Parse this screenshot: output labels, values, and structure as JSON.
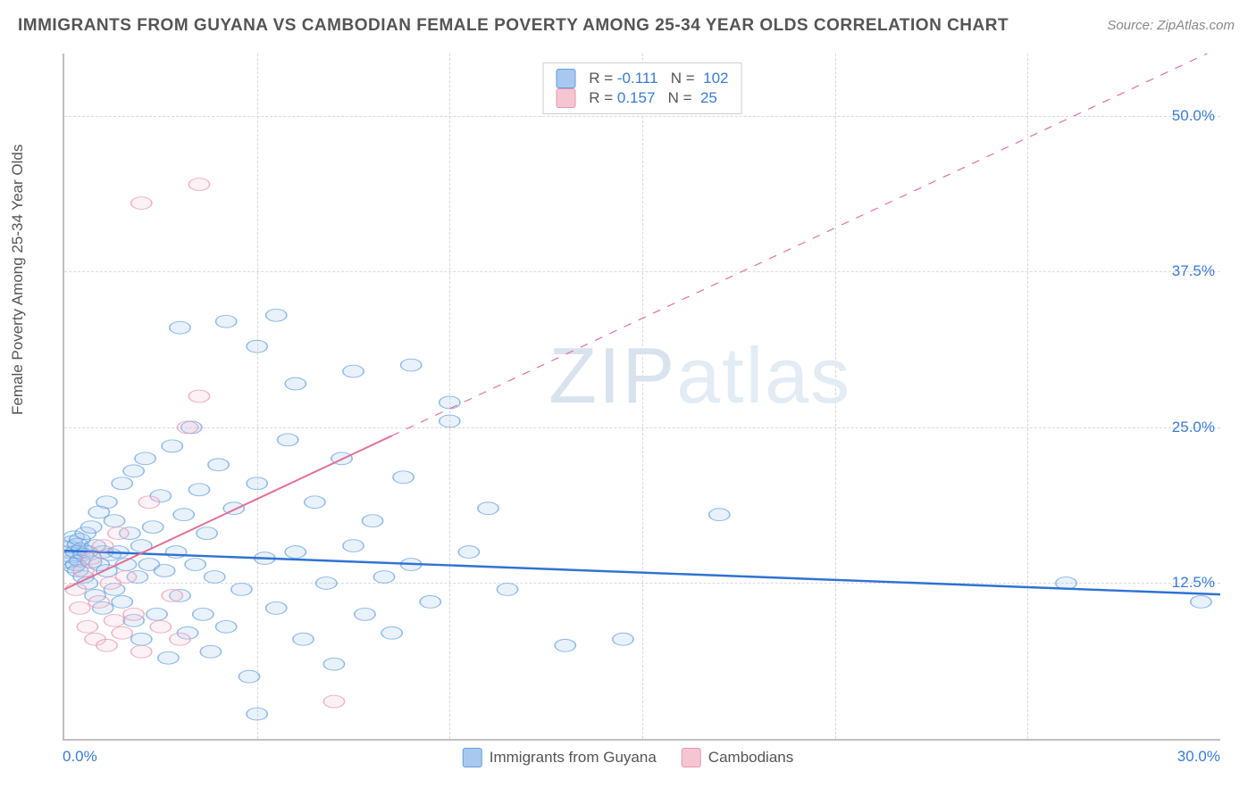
{
  "title": "IMMIGRANTS FROM GUYANA VS CAMBODIAN FEMALE POVERTY AMONG 25-34 YEAR OLDS CORRELATION CHART",
  "source_label": "Source:",
  "source_value": "ZipAtlas.com",
  "watermark_a": "ZIP",
  "watermark_b": "atlas",
  "chart": {
    "type": "scatter",
    "xlim": [
      0,
      30
    ],
    "ylim": [
      0,
      55
    ],
    "x_ticks": [
      0,
      30
    ],
    "x_tick_labels": [
      "0.0%",
      "30.0%"
    ],
    "x_minor_step": 5,
    "y_ticks": [
      12.5,
      25.0,
      37.5,
      50.0
    ],
    "y_tick_labels": [
      "12.5%",
      "25.0%",
      "37.5%",
      "50.0%"
    ],
    "y_axis_label": "Female Poverty Among 25-34 Year Olds",
    "background_color": "#ffffff",
    "grid_color": "#d9d9d9",
    "axis_color": "#bfbfbf",
    "tick_label_color": "#3a7bd5",
    "tick_fontsize": 17,
    "marker_radius": 9,
    "series": [
      {
        "id": "guyana",
        "label": "Immigrants from Guyana",
        "fill": "#a9c8ef",
        "stroke": "#5f9fe0",
        "trend": {
          "m": -0.117,
          "b": 15.1,
          "solid_until_x": 30,
          "width": 3.2,
          "color": "#2f72d4"
        },
        "R": "-0.111",
        "N": "102",
        "points": [
          [
            0.1,
            15.0
          ],
          [
            0.1,
            14.2
          ],
          [
            0.15,
            15.4
          ],
          [
            0.2,
            14.6
          ],
          [
            0.2,
            15.8
          ],
          [
            0.25,
            13.8
          ],
          [
            0.25,
            16.2
          ],
          [
            0.3,
            14.0
          ],
          [
            0.3,
            15.0
          ],
          [
            0.35,
            15.6
          ],
          [
            0.35,
            13.5
          ],
          [
            0.4,
            16.0
          ],
          [
            0.4,
            14.3
          ],
          [
            0.45,
            15.2
          ],
          [
            0.5,
            14.8
          ],
          [
            0.5,
            13.0
          ],
          [
            0.55,
            16.5
          ],
          [
            0.6,
            15.0
          ],
          [
            0.6,
            12.5
          ],
          [
            0.7,
            14.2
          ],
          [
            0.7,
            17.0
          ],
          [
            0.8,
            15.5
          ],
          [
            0.8,
            11.5
          ],
          [
            0.9,
            14.0
          ],
          [
            0.9,
            18.2
          ],
          [
            1.0,
            15.0
          ],
          [
            1.0,
            10.5
          ],
          [
            1.1,
            13.5
          ],
          [
            1.1,
            19.0
          ],
          [
            1.2,
            14.8
          ],
          [
            1.3,
            12.0
          ],
          [
            1.3,
            17.5
          ],
          [
            1.4,
            15.0
          ],
          [
            1.5,
            11.0
          ],
          [
            1.5,
            20.5
          ],
          [
            1.6,
            14.0
          ],
          [
            1.7,
            16.5
          ],
          [
            1.8,
            9.5
          ],
          [
            1.8,
            21.5
          ],
          [
            1.9,
            13.0
          ],
          [
            2.0,
            15.5
          ],
          [
            2.0,
            8.0
          ],
          [
            2.1,
            22.5
          ],
          [
            2.2,
            14.0
          ],
          [
            2.3,
            17.0
          ],
          [
            2.4,
            10.0
          ],
          [
            2.5,
            19.5
          ],
          [
            2.6,
            13.5
          ],
          [
            2.7,
            6.5
          ],
          [
            2.8,
            23.5
          ],
          [
            2.9,
            15.0
          ],
          [
            3.0,
            11.5
          ],
          [
            3.1,
            18.0
          ],
          [
            3.2,
            8.5
          ],
          [
            3.3,
            25.0
          ],
          [
            3.4,
            14.0
          ],
          [
            3.5,
            20.0
          ],
          [
            3.6,
            10.0
          ],
          [
            3.7,
            16.5
          ],
          [
            3.8,
            7.0
          ],
          [
            3.0,
            33.0
          ],
          [
            3.9,
            13.0
          ],
          [
            4.0,
            22.0
          ],
          [
            4.2,
            9.0
          ],
          [
            4.4,
            18.5
          ],
          [
            4.2,
            33.5
          ],
          [
            4.6,
            12.0
          ],
          [
            4.8,
            5.0
          ],
          [
            5.0,
            20.5
          ],
          [
            5.2,
            14.5
          ],
          [
            5.0,
            31.5
          ],
          [
            5.0,
            2.0
          ],
          [
            5.5,
            10.5
          ],
          [
            5.8,
            24.0
          ],
          [
            6.0,
            15.0
          ],
          [
            6.2,
            8.0
          ],
          [
            5.5,
            34.0
          ],
          [
            6.5,
            19.0
          ],
          [
            6.8,
            12.5
          ],
          [
            7.0,
            6.0
          ],
          [
            7.2,
            22.5
          ],
          [
            7.5,
            15.5
          ],
          [
            7.8,
            10.0
          ],
          [
            6.0,
            28.5
          ],
          [
            8.0,
            17.5
          ],
          [
            8.3,
            13.0
          ],
          [
            8.5,
            8.5
          ],
          [
            8.8,
            21.0
          ],
          [
            9.0,
            14.0
          ],
          [
            7.5,
            29.5
          ],
          [
            9.5,
            11.0
          ],
          [
            10.0,
            25.5
          ],
          [
            10.5,
            15.0
          ],
          [
            11.0,
            18.5
          ],
          [
            9.0,
            30.0
          ],
          [
            11.5,
            12.0
          ],
          [
            10.0,
            27.0
          ],
          [
            13.0,
            7.5
          ],
          [
            14.5,
            8.0
          ],
          [
            17.0,
            18.0
          ],
          [
            26.0,
            12.5
          ],
          [
            29.5,
            11.0
          ]
        ]
      },
      {
        "id": "cambodians",
        "label": "Cambodians",
        "fill": "#f4c6d2",
        "stroke": "#e895ad",
        "trend": {
          "m": 1.45,
          "b": 12.0,
          "solid_until_x": 8.5,
          "width": 2.2,
          "color": "#e46f93"
        },
        "R": "0.157",
        "N": "25",
        "points": [
          [
            0.3,
            12.0
          ],
          [
            0.4,
            10.5
          ],
          [
            0.5,
            13.5
          ],
          [
            0.6,
            9.0
          ],
          [
            0.7,
            14.5
          ],
          [
            0.8,
            8.0
          ],
          [
            0.9,
            11.0
          ],
          [
            1.0,
            15.5
          ],
          [
            1.1,
            7.5
          ],
          [
            1.2,
            12.5
          ],
          [
            1.3,
            9.5
          ],
          [
            1.4,
            16.5
          ],
          [
            1.5,
            8.5
          ],
          [
            1.6,
            13.0
          ],
          [
            1.8,
            10.0
          ],
          [
            2.0,
            7.0
          ],
          [
            2.2,
            19.0
          ],
          [
            2.0,
            43.0
          ],
          [
            2.5,
            9.0
          ],
          [
            2.8,
            11.5
          ],
          [
            3.5,
            44.5
          ],
          [
            3.0,
            8.0
          ],
          [
            3.2,
            25.0
          ],
          [
            3.5,
            27.5
          ],
          [
            7.0,
            3.0
          ]
        ]
      }
    ]
  },
  "stats_legend": {
    "rows": [
      {
        "swatch_fill": "#a9c8ef",
        "swatch_stroke": "#5f9fe0",
        "R": "-0.111",
        "N": "102"
      },
      {
        "swatch_fill": "#f4c6d2",
        "swatch_stroke": "#e895ad",
        "R": "0.157",
        "N": "25"
      }
    ],
    "r_label": "R =",
    "n_label": "N ="
  },
  "bottom_legend": [
    {
      "swatch_fill": "#a9c8ef",
      "swatch_stroke": "#5f9fe0",
      "label": "Immigrants from Guyana"
    },
    {
      "swatch_fill": "#f4c6d2",
      "swatch_stroke": "#e895ad",
      "label": "Cambodians"
    }
  ]
}
